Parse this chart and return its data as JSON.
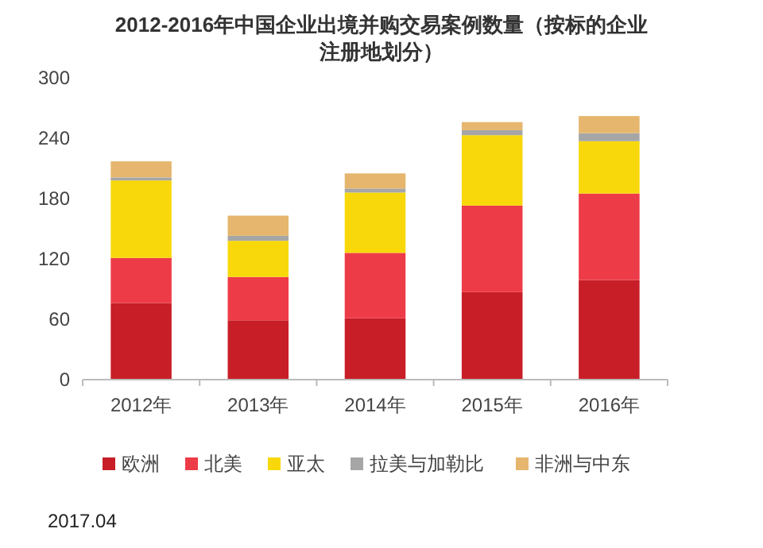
{
  "chart_data": {
    "type": "bar",
    "stacked": true,
    "title": "2012-2016年中国企业出境并购交易案例数量（按标的企业注册地划分）",
    "categories": [
      "2012年",
      "2013年",
      "2014年",
      "2015年",
      "2016年"
    ],
    "series": [
      {
        "name": "欧洲",
        "color": "#c81e28",
        "values": [
          76,
          59,
          61,
          87,
          99
        ]
      },
      {
        "name": "北美",
        "color": "#ee3b48",
        "values": [
          45,
          43,
          65,
          86,
          86
        ]
      },
      {
        "name": "亚太",
        "color": "#f8d80a",
        "values": [
          77,
          36,
          60,
          70,
          52
        ]
      },
      {
        "name": "拉美与加勒比",
        "color": "#a6a6a6",
        "values": [
          3,
          5,
          4,
          5,
          8
        ]
      },
      {
        "name": "非洲与中东",
        "color": "#e6b66e",
        "values": [
          16,
          20,
          15,
          8,
          17
        ]
      }
    ],
    "ylim": [
      0,
      300
    ],
    "yticks": [
      0,
      60,
      120,
      180,
      240,
      300
    ],
    "legend": "bottom",
    "annotations": [
      "2017.04"
    ]
  }
}
